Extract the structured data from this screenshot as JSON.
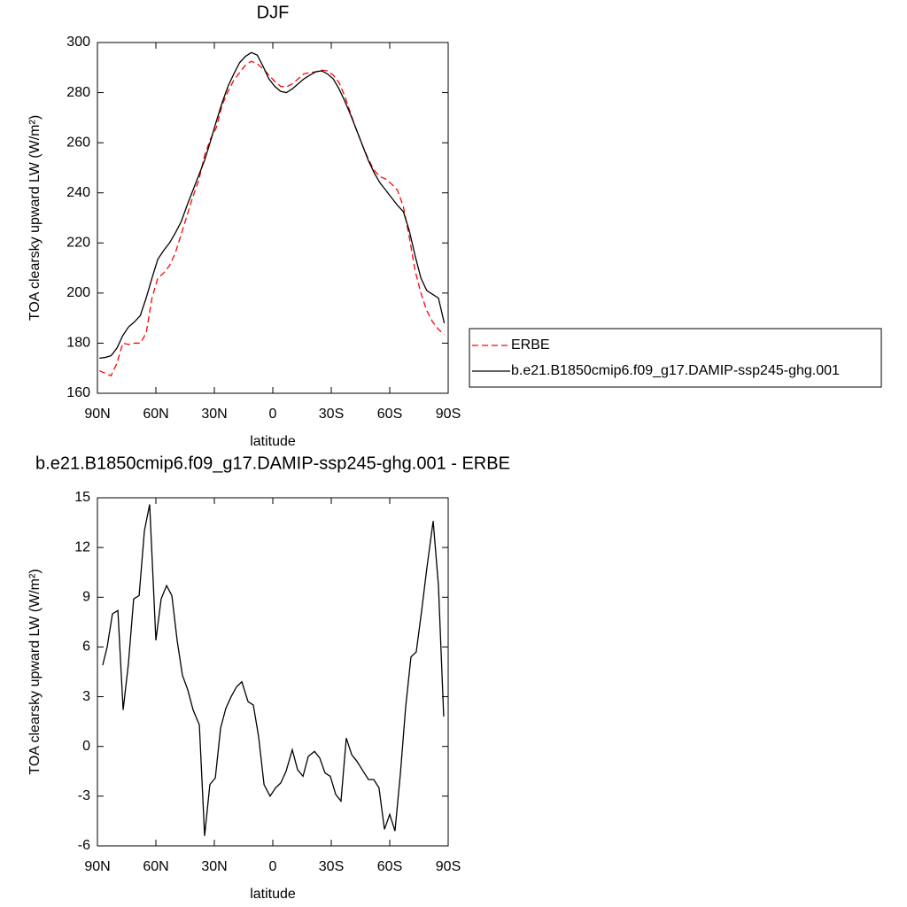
{
  "chart_data": [
    {
      "type": "line",
      "title": "DJF",
      "xlabel": "latitude",
      "ylabel": "TOA clearsky upward LW (W/m²)",
      "x": [
        89,
        86,
        83,
        80,
        77,
        74,
        71,
        68,
        65,
        62,
        59,
        56,
        53,
        50,
        47,
        44,
        41,
        38,
        35,
        32,
        29,
        26,
        23,
        20,
        17,
        14,
        11,
        8,
        5,
        2,
        -1,
        -4,
        -7,
        -10,
        -13,
        -16,
        -19,
        -22,
        -25,
        -28,
        -31,
        -34,
        -37,
        -40,
        -43,
        -46,
        -49,
        -52,
        -55,
        -58,
        -61,
        -64,
        -67,
        -70,
        -73,
        -76,
        -79,
        -82,
        -85,
        -88
      ],
      "series": [
        {
          "name": "ERBE",
          "color": "#ff0000",
          "dashed": true,
          "values": [
            169,
            168,
            167,
            172,
            180,
            179.5,
            180,
            180,
            184,
            198,
            206,
            208,
            211,
            216,
            223.5,
            231,
            238.5,
            245,
            255,
            261.5,
            266,
            275,
            280.5,
            285,
            288,
            291,
            292.5,
            291.5,
            289.5,
            287,
            284.5,
            282.5,
            282.3,
            283.5,
            285.5,
            287.5,
            288,
            288.3,
            289,
            288.7,
            287,
            284,
            278.5,
            271.5,
            265,
            259,
            253.5,
            249,
            246.5,
            245.5,
            243.5,
            241,
            234.5,
            222.5,
            209,
            200,
            193,
            188.5,
            185.5,
            183.5
          ]
        },
        {
          "name": "b.e21.B1850cmip6.f09_g17.DAMIP-ssp245-ghg.001",
          "color": "#000000",
          "dashed": false,
          "values": [
            174,
            174.3,
            175,
            178,
            183,
            186.5,
            188.5,
            191,
            198,
            206,
            213.5,
            217,
            220,
            224,
            228.5,
            235,
            241,
            247,
            253,
            260.5,
            268.5,
            276,
            282.5,
            287.5,
            292,
            294.5,
            296,
            295,
            290.5,
            285.5,
            282.5,
            280.5,
            280,
            281.5,
            283.5,
            285.5,
            287,
            288.3,
            288.7,
            287.5,
            285.5,
            281.5,
            276.5,
            271,
            265,
            259,
            253,
            248,
            244,
            241,
            238,
            235,
            232.5,
            225,
            215,
            206,
            201,
            199.5,
            198,
            188
          ]
        }
      ],
      "xlim": [
        90,
        -90
      ],
      "xticks": [
        {
          "value": 90,
          "label": "90N"
        },
        {
          "value": 60,
          "label": "60N"
        },
        {
          "value": 30,
          "label": "30N"
        },
        0,
        {
          "value": -30,
          "label": "30S"
        },
        {
          "value": -60,
          "label": "60S"
        },
        {
          "value": -90,
          "label": "90S"
        }
      ],
      "ylim": [
        160,
        300
      ],
      "yticks": [
        160,
        180,
        200,
        220,
        240,
        260,
        280,
        300
      ],
      "legend": "right"
    },
    {
      "type": "line",
      "title": "b.e21.B1850cmip6.f09_g17.DAMIP-ssp245-ghg.001 - ERBE",
      "xlabel": "latitude",
      "ylabel": "TOA clearsky upward LW (W/m²)",
      "x": [
        87.3,
        85,
        82.3,
        79.5,
        76.8,
        74.1,
        71.4,
        68.6,
        65.9,
        63.2,
        60,
        57.3,
        54.5,
        51.8,
        49.1,
        46.4,
        43.6,
        40.9,
        37.7,
        35,
        32.3,
        29.5,
        26.8,
        24.1,
        21.4,
        18.6,
        15.9,
        12.7,
        10,
        7.3,
        4.5,
        1.4,
        -1.4,
        -4.1,
        -6.8,
        -10,
        -12.7,
        -15.5,
        -18.2,
        -21.4,
        -24.1,
        -26.8,
        -29.5,
        -32.3,
        -35,
        -37.7,
        -40.5,
        -43.2,
        -46.4,
        -49.1,
        -51.8,
        -54.5,
        -57.3,
        -60,
        -62.7,
        -65.5,
        -68.2,
        -70.9,
        -73.6,
        -76.4,
        -79.1,
        -82.3,
        -85,
        -87.7
      ],
      "series": [
        {
          "name": null,
          "color": "#000000",
          "dashed": false,
          "values": [
            4.9,
            6,
            8,
            8.2,
            2.2,
            5,
            8.9,
            9.1,
            13,
            14.6,
            6.4,
            8.9,
            9.7,
            9.1,
            6.4,
            4.3,
            3.4,
            2.2,
            1.3,
            -5.4,
            -2.3,
            -1.9,
            1.1,
            2.3,
            3,
            3.6,
            3.9,
            2.7,
            2.5,
            0.6,
            -2.3,
            -3,
            -2.5,
            -2.2,
            -1.5,
            -0.2,
            -1.4,
            -1.8,
            -0.6,
            -0.3,
            -0.7,
            -1.6,
            -1.8,
            -2.9,
            -3.3,
            0.5,
            -0.5,
            -0.9,
            -1.5,
            -2,
            -2,
            -2.5,
            -5,
            -4.1,
            -5.1,
            -1.6,
            2.4,
            5.4,
            5.7,
            8.2,
            10.8,
            13.6,
            9.7,
            1.8
          ]
        }
      ],
      "xlim": [
        90,
        -90
      ],
      "xticks": [
        {
          "value": 90,
          "label": "90N"
        },
        {
          "value": 60,
          "label": "60N"
        },
        {
          "value": 30,
          "label": "30N"
        },
        0,
        {
          "value": -30,
          "label": "30S"
        },
        {
          "value": -60,
          "label": "60S"
        },
        {
          "value": -90,
          "label": "90S"
        }
      ],
      "ylim": [
        -6,
        15
      ],
      "yticks": [
        -6,
        -3,
        0,
        3,
        6,
        9,
        12,
        15
      ]
    }
  ]
}
